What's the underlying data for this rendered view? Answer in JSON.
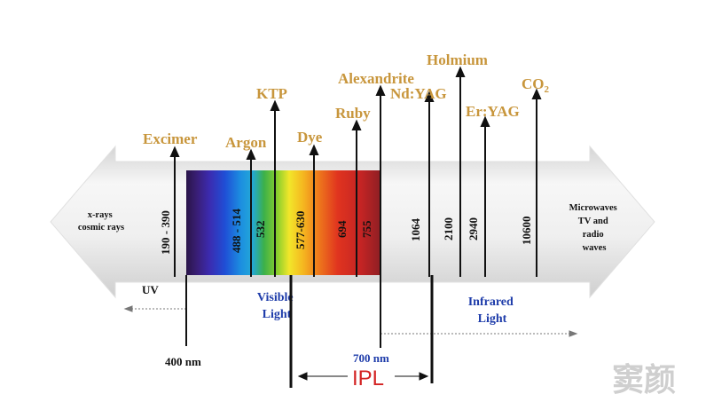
{
  "lasers": {
    "excimer": "Excimer",
    "argon": "Argon",
    "ktp": "KTP",
    "dye": "Dye",
    "ruby": "Ruby",
    "alexandrite": "Alexandrite",
    "ndyag": "Nd:YAG",
    "holmium": "Holmium",
    "eryag": "Er:YAG",
    "co2_base": "CO",
    "co2_sub": "2"
  },
  "wavelengths": {
    "excimer": "190 - 390",
    "argon": "488 - 514",
    "ktp": "532",
    "dye": "577-630",
    "ruby": "694",
    "alexandrite": "755",
    "ndyag": "1064",
    "holmium": "2100",
    "eryag": "2940",
    "co2": "10600"
  },
  "left_end": {
    "line1": "x-rays",
    "line2": "cosmic rays"
  },
  "right_end": {
    "line1": "Microwaves",
    "line2": "TV and",
    "line3": "radio",
    "line4": "waves"
  },
  "bands": {
    "uv": "UV",
    "visible_1": "Visible",
    "visible_2": "Light",
    "infrared_1": "Infrared",
    "infrared_2": "Light"
  },
  "markers": {
    "nm400": "400 nm",
    "nm700": "700 nm",
    "ipl": "IPL"
  },
  "watermark": "窦颜",
  "colors": {
    "laser_label": "#c8963c",
    "band_label": "#1e3caa",
    "ipl_label": "#d32222",
    "arrow_body": "#e6e6e6"
  }
}
